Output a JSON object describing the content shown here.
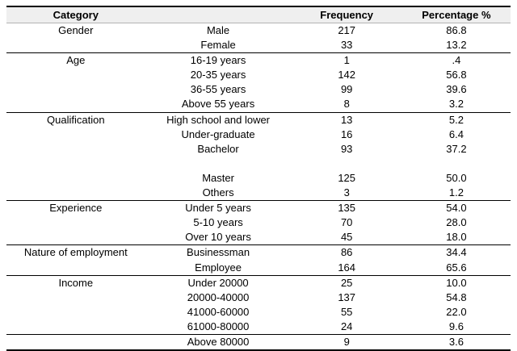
{
  "chart_data": {
    "type": "table",
    "headers": [
      "Category",
      "",
      "Frequency",
      "Percentage %"
    ],
    "sections": [
      {
        "category": "Gender",
        "rule_above": false,
        "rows": [
          {
            "label": "Male",
            "frequency": "217",
            "percentage": "86.8"
          },
          {
            "label": "Female",
            "frequency": "33",
            "percentage": "13.2"
          }
        ]
      },
      {
        "category": "Age",
        "rule_above": true,
        "rows": [
          {
            "label": "16-19 years",
            "frequency": "1",
            "percentage": ".4"
          },
          {
            "label": "20-35 years",
            "frequency": "142",
            "percentage": "56.8"
          },
          {
            "label": "36-55 years",
            "frequency": "99",
            "percentage": "39.6"
          },
          {
            "label": "Above 55 years",
            "frequency": "8",
            "percentage": "3.2"
          }
        ]
      },
      {
        "category": "Qualification",
        "rule_above": true,
        "rows": [
          {
            "label": "High school and lower",
            "frequency": "13",
            "percentage": "5.2"
          },
          {
            "label": "Under-graduate",
            "frequency": "16",
            "percentage": "6.4"
          },
          {
            "label": "Bachelor",
            "frequency": "93",
            "percentage": "37.2"
          },
          {
            "spacer": true,
            "label": "",
            "frequency": "",
            "percentage": ""
          },
          {
            "label": "Master",
            "frequency": "125",
            "percentage": "50.0"
          },
          {
            "label": "Others",
            "frequency": "3",
            "percentage": "1.2"
          }
        ]
      },
      {
        "category": "Experience",
        "rule_above": true,
        "rows": [
          {
            "label": "Under 5 years",
            "frequency": "135",
            "percentage": "54.0"
          },
          {
            "label": "5-10 years",
            "frequency": "70",
            "percentage": "28.0"
          },
          {
            "label": "Over 10 years",
            "frequency": "45",
            "percentage": "18.0"
          }
        ]
      },
      {
        "category": "Nature of employment",
        "rule_above": true,
        "rows": [
          {
            "label": "Businessman",
            "frequency": "86",
            "percentage": "34.4"
          },
          {
            "label": "Employee",
            "frequency": "164",
            "percentage": "65.6"
          }
        ]
      },
      {
        "category": "Income",
        "rule_above": true,
        "rows": [
          {
            "label": "Under 20000",
            "frequency": "25",
            "percentage": "10.0"
          },
          {
            "label": "20000-40000",
            "frequency": "137",
            "percentage": "54.8"
          },
          {
            "label": "41000-60000",
            "frequency": "55",
            "percentage": "22.0"
          },
          {
            "label": "61000-80000",
            "frequency": "24",
            "percentage": "9.6"
          }
        ]
      },
      {
        "category": "",
        "rule_above": true,
        "rows": [
          {
            "label": "Above 80000",
            "frequency": "9",
            "percentage": "3.6"
          }
        ]
      }
    ],
    "colors": {
      "header_bg": "#efefef",
      "rule": "#000000",
      "header_rule": "#b3b3b3"
    }
  }
}
